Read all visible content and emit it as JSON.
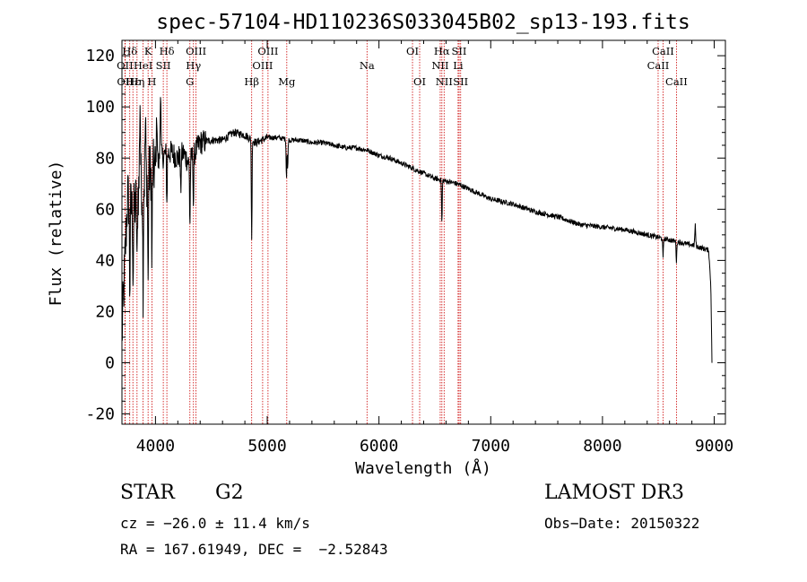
{
  "chart_data": {
    "type": "line",
    "title": "spec-57104-HD110236S033045B02_sp13-193.fits",
    "xlabel": "Wavelength (Å)",
    "ylabel": "Flux (relative)",
    "xlim": [
      3700,
      9100
    ],
    "ylim": [
      -24,
      126
    ],
    "x_ticks": [
      4000,
      5000,
      6000,
      7000,
      8000,
      9000
    ],
    "y_ticks": [
      -20,
      0,
      20,
      40,
      60,
      80,
      100,
      120
    ],
    "series": [
      {
        "name": "flux",
        "continuum": {
          "x": [
            3700,
            3750,
            3800,
            3850,
            3900,
            3950,
            4000,
            4050,
            4100,
            4150,
            4200,
            4250,
            4300,
            4350,
            4400,
            4500,
            4600,
            4700,
            4800,
            4900,
            5000,
            5100,
            5200,
            5300,
            5400,
            5500,
            5600,
            5700,
            5800,
            5900,
            6000,
            6100,
            6200,
            6300,
            6400,
            6500,
            6600,
            6700,
            6800,
            6900,
            7000,
            7200,
            7400,
            7600,
            7800,
            8000,
            8200,
            8400,
            8600,
            8800,
            8950,
            8970,
            8980
          ],
          "y": [
            10,
            65,
            58,
            68,
            70,
            75,
            76,
            80,
            82,
            82,
            80,
            82,
            78,
            82,
            86,
            87,
            87,
            90,
            89,
            86,
            88,
            88,
            87,
            87,
            86,
            86,
            85,
            84,
            84,
            83,
            81,
            80,
            78,
            76,
            74,
            72,
            71,
            70,
            68,
            66,
            64,
            62,
            59,
            57,
            54,
            53,
            52,
            50,
            48,
            46,
            44,
            30,
            0
          ]
        },
        "absorption_features": [
          {
            "x": 3770,
            "depth": 35
          },
          {
            "x": 3800,
            "depth": 25
          },
          {
            "x": 3835,
            "depth": 30
          },
          {
            "x": 3889,
            "depth": 40
          },
          {
            "x": 3934,
            "depth": 45
          },
          {
            "x": 3968,
            "depth": 38
          },
          {
            "x": 4102,
            "depth": 20
          },
          {
            "x": 4226,
            "depth": 15
          },
          {
            "x": 4308,
            "depth": 25
          },
          {
            "x": 4340,
            "depth": 20
          },
          {
            "x": 4861,
            "depth": 40
          },
          {
            "x": 5172,
            "depth": 15
          },
          {
            "x": 5183,
            "depth": 12
          },
          {
            "x": 6563,
            "depth": 17
          },
          {
            "x": 8542,
            "depth": 8
          },
          {
            "x": 8662,
            "depth": 8
          }
        ],
        "emission_features": [
          {
            "x": 3862,
            "height": 35
          },
          {
            "x": 3910,
            "height": 22
          },
          {
            "x": 4012,
            "height": 20
          },
          {
            "x": 4045,
            "height": 26
          },
          {
            "x": 8830,
            "height": 8
          }
        ]
      }
    ],
    "spectral_lines": [
      {
        "label": "Hδ",
        "x": 3770,
        "row": 0
      },
      {
        "label": "OII",
        "x": 3727,
        "row": 1
      },
      {
        "label": "OII",
        "x": 3729,
        "row": 2
      },
      {
        "label": "Hε",
        "x": 3798,
        "row": 2
      },
      {
        "label": "K",
        "x": 3934,
        "row": 0
      },
      {
        "label": "HeI",
        "x": 3889,
        "row": 1
      },
      {
        "label": "Hη",
        "x": 3835,
        "row": 2
      },
      {
        "label": "H",
        "x": 3968,
        "row": 2
      },
      {
        "label": "SII",
        "x": 4070,
        "row": 1
      },
      {
        "label": "Hδ",
        "x": 4102,
        "row": 0
      },
      {
        "label": "OIII",
        "x": 4363,
        "row": 0
      },
      {
        "label": "Hγ",
        "x": 4340,
        "row": 1
      },
      {
        "label": "G",
        "x": 4308,
        "row": 2
      },
      {
        "label": "Hβ",
        "x": 4861,
        "row": 2
      },
      {
        "label": "OIII",
        "x": 5007,
        "row": 0
      },
      {
        "label": "OIII",
        "x": 4959,
        "row": 1
      },
      {
        "label": "Mg",
        "x": 5175,
        "row": 2
      },
      {
        "label": "Na",
        "x": 5893,
        "row": 1
      },
      {
        "label": "OI",
        "x": 6300,
        "row": 0
      },
      {
        "label": "OI",
        "x": 6364,
        "row": 2
      },
      {
        "label": "Hα",
        "x": 6563,
        "row": 0
      },
      {
        "label": "NII",
        "x": 6548,
        "row": 1
      },
      {
        "label": "NII",
        "x": 6583,
        "row": 2
      },
      {
        "label": "SII",
        "x": 6717,
        "row": 0
      },
      {
        "label": "Li",
        "x": 6708,
        "row": 1
      },
      {
        "label": "SII",
        "x": 6731,
        "row": 2
      },
      {
        "label": "CaII",
        "x": 8542,
        "row": 0
      },
      {
        "label": "CaII",
        "x": 8498,
        "row": 1
      },
      {
        "label": "CaII",
        "x": 8662,
        "row": 2
      }
    ]
  },
  "info": {
    "object_class": "STAR",
    "subclass": "G2",
    "survey": "LAMOST DR3",
    "redshift": "cz = −26.0 ± 11.4 km/s",
    "obs_date": "Obs−Date: 20150322",
    "coords": "RA = 167.61949, DEC =  −2.52843"
  },
  "colors": {
    "line": "#000000",
    "marker": "#cc0000",
    "axis": "#000000"
  }
}
